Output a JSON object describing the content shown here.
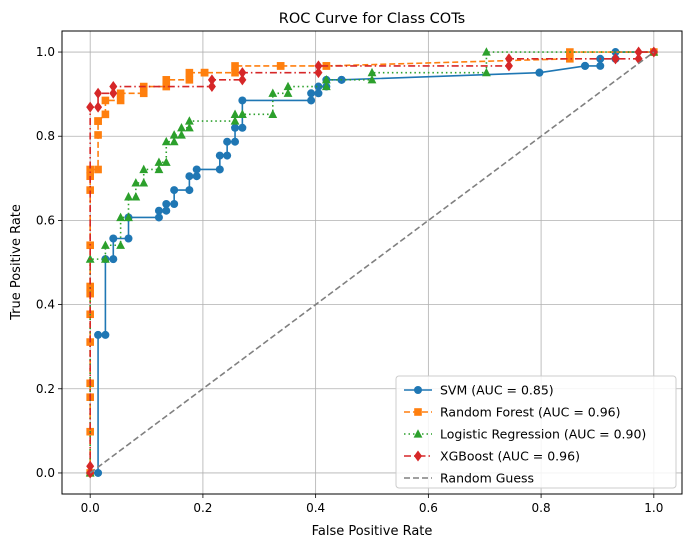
{
  "chart_data": {
    "type": "line",
    "title": "ROC Curve for Class COTs",
    "xlabel": "False Positive Rate",
    "ylabel": "True Positive Rate",
    "xlim": [
      -0.05,
      1.05
    ],
    "ylim": [
      -0.05,
      1.05
    ],
    "xticks": [
      "0.0",
      "0.2",
      "0.4",
      "0.6",
      "0.8",
      "1.0"
    ],
    "yticks": [
      "0.0",
      "0.2",
      "0.4",
      "0.6",
      "0.8",
      "1.0"
    ],
    "grid": true,
    "legend_position": "lower-right",
    "series": [
      {
        "name": "SVM (AUC = 0.85)",
        "color": "#1f77b4",
        "marker": "circle",
        "dash": "solid",
        "x": [
          0,
          0.014,
          0.014,
          0.027,
          0.027,
          0.041,
          0.041,
          0.068,
          0.068,
          0.122,
          0.122,
          0.135,
          0.135,
          0.149,
          0.149,
          0.176,
          0.176,
          0.189,
          0.189,
          0.23,
          0.23,
          0.243,
          0.243,
          0.257,
          0.257,
          0.27,
          0.27,
          0.392,
          0.392,
          0.405,
          0.405,
          0.419,
          0.419,
          0.446,
          0.446,
          0.797,
          0.797,
          0.878,
          0.878,
          0.905,
          0.905,
          0.932,
          0.932,
          1.0
        ],
        "y": [
          0,
          0,
          0.328,
          0.328,
          0.508,
          0.508,
          0.557,
          0.557,
          0.607,
          0.607,
          0.623,
          0.623,
          0.639,
          0.639,
          0.672,
          0.672,
          0.705,
          0.705,
          0.721,
          0.721,
          0.754,
          0.754,
          0.787,
          0.787,
          0.82,
          0.82,
          0.885,
          0.885,
          0.902,
          0.902,
          0.918,
          0.918,
          0.934,
          0.934,
          0.934,
          0.951,
          0.951,
          0.967,
          0.967,
          0.967,
          0.984,
          0.984,
          1.0,
          1.0
        ]
      },
      {
        "name": "Random Forest (AUC = 0.96)",
        "color": "#ff7f0e",
        "marker": "square",
        "dash": "dashed",
        "x": [
          0,
          0,
          0,
          0,
          0,
          0,
          0,
          0,
          0,
          0,
          0,
          0,
          0.014,
          0.014,
          0.014,
          0.014,
          0.027,
          0.027,
          0.054,
          0.054,
          0.095,
          0.095,
          0.135,
          0.135,
          0.176,
          0.176,
          0.203,
          0.203,
          0.257,
          0.257,
          0.338,
          0.338,
          0.419,
          0.419,
          0.851,
          0.851,
          1.0
        ],
        "y": [
          0,
          0.098,
          0.18,
          0.213,
          0.311,
          0.377,
          0.426,
          0.443,
          0.541,
          0.672,
          0.705,
          0.721,
          0.721,
          0.803,
          0.836,
          0.836,
          0.852,
          0.885,
          0.885,
          0.902,
          0.902,
          0.918,
          0.918,
          0.934,
          0.934,
          0.951,
          0.951,
          0.951,
          0.951,
          0.967,
          0.967,
          0.967,
          0.967,
          0.967,
          0.984,
          1.0,
          1.0
        ]
      },
      {
        "name": "Logistic Regression (AUC = 0.90)",
        "color": "#2ca02c",
        "marker": "triangle",
        "dash": "dotted",
        "x": [
          0,
          0,
          0.027,
          0.027,
          0.054,
          0.054,
          0.068,
          0.068,
          0.081,
          0.081,
          0.095,
          0.095,
          0.122,
          0.122,
          0.135,
          0.135,
          0.149,
          0.149,
          0.162,
          0.162,
          0.176,
          0.176,
          0.257,
          0.257,
          0.27,
          0.27,
          0.324,
          0.324,
          0.351,
          0.351,
          0.419,
          0.419,
          0.5,
          0.5,
          0.703,
          0.703,
          1.0
        ],
        "y": [
          0,
          0.508,
          0.508,
          0.541,
          0.541,
          0.607,
          0.607,
          0.656,
          0.656,
          0.689,
          0.689,
          0.721,
          0.721,
          0.738,
          0.738,
          0.787,
          0.787,
          0.803,
          0.803,
          0.82,
          0.82,
          0.836,
          0.836,
          0.852,
          0.852,
          0.852,
          0.852,
          0.902,
          0.902,
          0.918,
          0.918,
          0.934,
          0.934,
          0.951,
          0.951,
          1.0,
          1.0
        ]
      },
      {
        "name": "XGBoost (AUC = 0.96)",
        "color": "#d62728",
        "marker": "diamond",
        "dash": "dashdot",
        "x": [
          0,
          0,
          0,
          0.014,
          0.014,
          0.041,
          0.041,
          0.216,
          0.216,
          0.27,
          0.27,
          0.405,
          0.405,
          0.743,
          0.743,
          0.932,
          0.932,
          0.973,
          0.973,
          1.0
        ],
        "y": [
          0,
          0.016,
          0.869,
          0.869,
          0.902,
          0.902,
          0.918,
          0.918,
          0.934,
          0.934,
          0.951,
          0.951,
          0.967,
          0.967,
          0.984,
          0.984,
          0.984,
          0.984,
          1.0,
          1.0
        ]
      },
      {
        "name": "Random Guess",
        "color": "#808080",
        "marker": "none",
        "dash": "dashed",
        "x": [
          0,
          1
        ],
        "y": [
          0,
          1
        ]
      }
    ]
  }
}
